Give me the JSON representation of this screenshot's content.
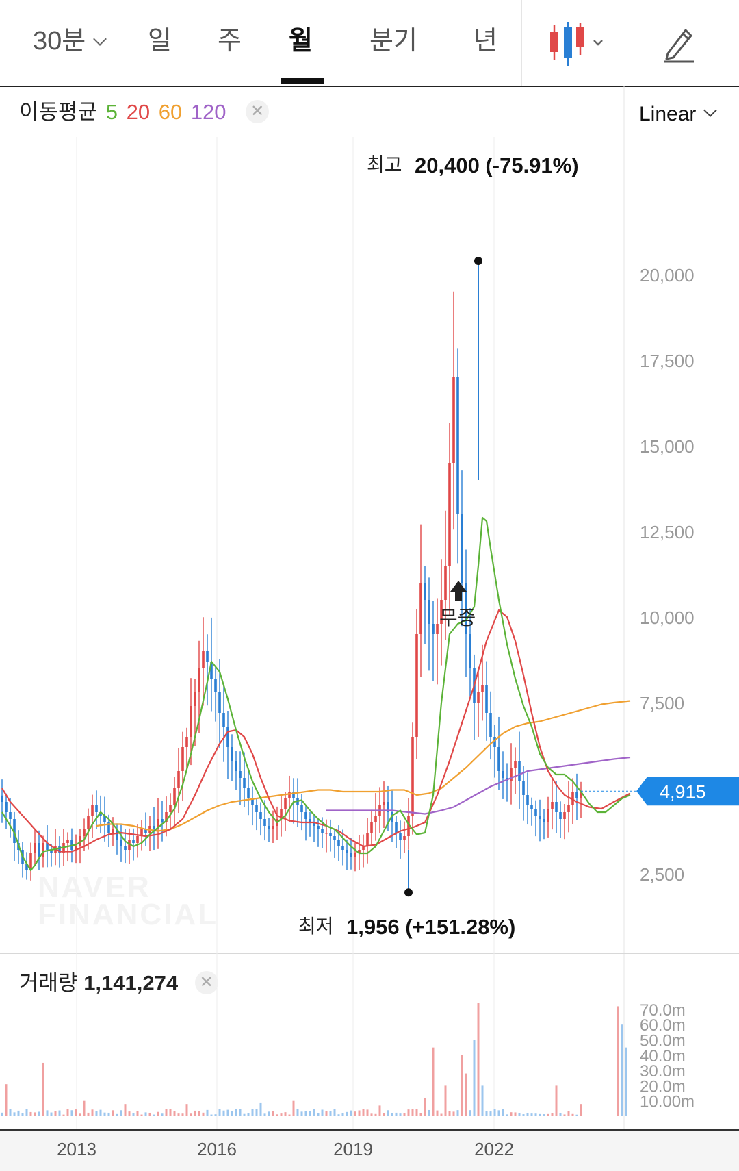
{
  "tabs": [
    {
      "label": "30분",
      "dropdown": true,
      "active": false
    },
    {
      "label": "일",
      "active": false
    },
    {
      "label": "주",
      "active": false
    },
    {
      "label": "월",
      "active": true
    },
    {
      "label": "분기",
      "active": false
    },
    {
      "label": "년",
      "active": false
    }
  ],
  "toolbar": {
    "chart_type_icon": "candlestick-icon",
    "draw_icon": "pencil-icon"
  },
  "ma_legend": {
    "label": "이동평균",
    "periods": [
      {
        "value": "5",
        "color": "#5cb338"
      },
      {
        "value": "20",
        "color": "#e04848"
      },
      {
        "value": "60",
        "color": "#f0a030"
      },
      {
        "value": "120",
        "color": "#a064c8"
      }
    ]
  },
  "scale_select": {
    "value": "Linear"
  },
  "annotations": {
    "high_prefix": "최고",
    "high_value": "20,400 (-75.91%)",
    "low_prefix": "최저",
    "low_value": "1,956 (+151.28%)",
    "event": "무증"
  },
  "price_tag": "4,915",
  "watermark": [
    "NAVER",
    "FINANCIAL"
  ],
  "volume_legend": {
    "label": "거래량",
    "value": "1,141,274"
  },
  "colors": {
    "up": "#e04848",
    "down": "#2a7fd4",
    "tag": "#1e88e5"
  },
  "chart_data": {
    "type": "candlestick",
    "price_axis": {
      "ticks": [
        "20,000",
        "17,500",
        "15,000",
        "12,500",
        "10,000",
        "7,500",
        "2,500"
      ],
      "range": [
        1200,
        21500
      ]
    },
    "volume_axis": {
      "ticks": [
        "70.0m",
        "60.0m",
        "50.0m",
        "40.0m",
        "30.0m",
        "20.0m",
        "10.00m"
      ],
      "range": [
        0,
        75
      ]
    },
    "x_axis": {
      "ticks": [
        "2013",
        "2016",
        "2019",
        "2022"
      ]
    },
    "high": {
      "value": 20400,
      "label": "최고 20,400 (-75.91%)"
    },
    "low": {
      "value": 1956,
      "label": "최저 1,956 (+151.28%)"
    },
    "last_price": 4915,
    "ma_periods": [
      5,
      20,
      60,
      120
    ],
    "start": {
      "year": 2011,
      "month": 9
    },
    "closes": [
      4600,
      4300,
      4100,
      3400,
      3200,
      2800,
      2600,
      3100,
      3400,
      3000,
      3400,
      3200,
      3100,
      3300,
      3100,
      3400,
      3500,
      3200,
      3300,
      3600,
      3800,
      4200,
      4500,
      4300,
      4200,
      4000,
      3700,
      3800,
      3500,
      3300,
      3200,
      3500,
      3400,
      3600,
      3800,
      3700,
      3900,
      3800,
      4100,
      4000,
      4300,
      4500,
      5000,
      5500,
      6200,
      6500,
      7400,
      7800,
      8500,
      9000,
      8700,
      8200,
      7800,
      7200,
      6800,
      6200,
      5800,
      5500,
      5300,
      5000,
      4700,
      4500,
      4300,
      4100,
      3900,
      3800,
      3900,
      4100,
      4400,
      4700,
      4900,
      4700,
      4500,
      4300,
      4100,
      4000,
      3900,
      3800,
      3700,
      3700,
      3600,
      3500,
      3300,
      3200,
      3100,
      3000,
      3100,
      3200,
      3300,
      3700,
      4000,
      4200,
      4500,
      4600,
      4300,
      4000,
      3700,
      3500,
      3600,
      4200,
      6500,
      9500,
      11000,
      10500,
      9800,
      9500,
      9800,
      10500,
      11500,
      14500,
      17000,
      13000,
      11000,
      9500,
      8500,
      7500,
      7800,
      8000,
      7200,
      6500,
      6200,
      5500,
      5300,
      5200,
      5600,
      5800,
      5200,
      4800,
      4500,
      4400,
      4200,
      4100,
      4000,
      4400,
      4600,
      4300,
      4100,
      4300,
      4500,
      4900,
      4700,
      4915
    ],
    "ma5": [
      [
        0,
        4300
      ],
      [
        3,
        3700
      ],
      [
        5,
        3000
      ],
      [
        7,
        2600
      ],
      [
        8,
        2750
      ],
      [
        10,
        3150
      ],
      [
        12,
        3200
      ],
      [
        14,
        3250
      ],
      [
        16,
        3300
      ],
      [
        18,
        3350
      ],
      [
        20,
        3500
      ],
      [
        22,
        3950
      ],
      [
        24,
        4300
      ],
      [
        26,
        4100
      ],
      [
        28,
        3800
      ],
      [
        30,
        3450
      ],
      [
        32,
        3300
      ],
      [
        34,
        3400
      ],
      [
        36,
        3650
      ],
      [
        38,
        3850
      ],
      [
        40,
        4050
      ],
      [
        42,
        4400
      ],
      [
        44,
        5100
      ],
      [
        46,
        6000
      ],
      [
        48,
        7000
      ],
      [
        50,
        8100
      ],
      [
        51,
        8700
      ],
      [
        53,
        8400
      ],
      [
        55,
        7600
      ],
      [
        57,
        6700
      ],
      [
        59,
        5900
      ],
      [
        61,
        5200
      ],
      [
        63,
        4700
      ],
      [
        65,
        4300
      ],
      [
        67,
        4000
      ],
      [
        69,
        4200
      ],
      [
        71,
        4600
      ],
      [
        73,
        4650
      ],
      [
        75,
        4350
      ],
      [
        77,
        4100
      ],
      [
        79,
        3900
      ],
      [
        81,
        3800
      ],
      [
        83,
        3550
      ],
      [
        85,
        3300
      ],
      [
        87,
        3100
      ],
      [
        89,
        3100
      ],
      [
        91,
        3300
      ],
      [
        93,
        3750
      ],
      [
        95,
        4200
      ],
      [
        97,
        4350
      ],
      [
        99,
        3950
      ],
      [
        101,
        3650
      ],
      [
        103,
        3700
      ],
      [
        105,
        4800
      ],
      [
        107,
        7500
      ],
      [
        109,
        9500
      ],
      [
        111,
        9800
      ],
      [
        113,
        9900
      ],
      [
        115,
        10300
      ],
      [
        116,
        11500
      ],
      [
        117,
        12900
      ],
      [
        118,
        12800
      ],
      [
        119,
        12000
      ],
      [
        121,
        10500
      ],
      [
        123,
        9200
      ],
      [
        125,
        8200
      ],
      [
        127,
        7400
      ],
      [
        129,
        6800
      ],
      [
        131,
        6000
      ],
      [
        133,
        5600
      ],
      [
        135,
        5400
      ],
      [
        137,
        5400
      ],
      [
        139,
        5200
      ],
      [
        141,
        4900
      ],
      [
        143,
        4550
      ],
      [
        145,
        4300
      ],
      [
        147,
        4300
      ],
      [
        149,
        4500
      ],
      [
        151,
        4700
      ],
      [
        153,
        4800
      ]
    ],
    "ma20": [
      [
        0,
        5000
      ],
      [
        2,
        4600
      ],
      [
        5,
        4200
      ],
      [
        8,
        3800
      ],
      [
        11,
        3400
      ],
      [
        14,
        3150
      ],
      [
        17,
        3150
      ],
      [
        20,
        3300
      ],
      [
        23,
        3500
      ],
      [
        26,
        3650
      ],
      [
        29,
        3700
      ],
      [
        32,
        3650
      ],
      [
        35,
        3600
      ],
      [
        38,
        3650
      ],
      [
        41,
        3800
      ],
      [
        44,
        4100
      ],
      [
        47,
        4800
      ],
      [
        50,
        5600
      ],
      [
        53,
        6300
      ],
      [
        55,
        6650
      ],
      [
        57,
        6700
      ],
      [
        59,
        6500
      ],
      [
        61,
        6000
      ],
      [
        63,
        5300
      ],
      [
        65,
        4700
      ],
      [
        67,
        4200
      ],
      [
        70,
        4050
      ],
      [
        73,
        4000
      ],
      [
        76,
        4000
      ],
      [
        79,
        3900
      ],
      [
        82,
        3750
      ],
      [
        85,
        3500
      ],
      [
        88,
        3300
      ],
      [
        91,
        3350
      ],
      [
        94,
        3550
      ],
      [
        97,
        3750
      ],
      [
        100,
        3850
      ],
      [
        103,
        4000
      ],
      [
        106,
        4800
      ],
      [
        109,
        5800
      ],
      [
        112,
        6900
      ],
      [
        115,
        8000
      ],
      [
        118,
        9300
      ],
      [
        121,
        10200
      ],
      [
        123,
        10000
      ],
      [
        125,
        9300
      ],
      [
        127,
        8300
      ],
      [
        129,
        7200
      ],
      [
        131,
        6200
      ],
      [
        133,
        5500
      ],
      [
        135,
        5100
      ],
      [
        137,
        4800
      ],
      [
        140,
        4600
      ],
      [
        143,
        4450
      ],
      [
        146,
        4400
      ],
      [
        149,
        4600
      ],
      [
        153,
        4850
      ]
    ],
    "ma60": [
      [
        23,
        3900
      ],
      [
        26,
        3950
      ],
      [
        29,
        3950
      ],
      [
        32,
        3900
      ],
      [
        35,
        3800
      ],
      [
        38,
        3750
      ],
      [
        41,
        3800
      ],
      [
        44,
        3950
      ],
      [
        47,
        4150
      ],
      [
        50,
        4350
      ],
      [
        53,
        4500
      ],
      [
        56,
        4600
      ],
      [
        59,
        4650
      ],
      [
        62,
        4700
      ],
      [
        65,
        4750
      ],
      [
        68,
        4800
      ],
      [
        71,
        4850
      ],
      [
        74,
        4900
      ],
      [
        77,
        4950
      ],
      [
        80,
        4950
      ],
      [
        83,
        4900
      ],
      [
        86,
        4900
      ],
      [
        89,
        4900
      ],
      [
        92,
        4900
      ],
      [
        95,
        4950
      ],
      [
        98,
        4950
      ],
      [
        101,
        4800
      ],
      [
        104,
        4850
      ],
      [
        107,
        5000
      ],
      [
        110,
        5300
      ],
      [
        113,
        5600
      ],
      [
        116,
        5950
      ],
      [
        119,
        6300
      ],
      [
        122,
        6600
      ],
      [
        125,
        6800
      ],
      [
        128,
        6900
      ],
      [
        131,
        6950
      ],
      [
        134,
        7050
      ],
      [
        137,
        7150
      ],
      [
        140,
        7250
      ],
      [
        143,
        7350
      ],
      [
        146,
        7450
      ],
      [
        149,
        7500
      ],
      [
        153,
        7550
      ]
    ],
    "ma120": [
      [
        79,
        4350
      ],
      [
        83,
        4350
      ],
      [
        87,
        4350
      ],
      [
        91,
        4350
      ],
      [
        95,
        4350
      ],
      [
        99,
        4300
      ],
      [
        103,
        4250
      ],
      [
        107,
        4350
      ],
      [
        110,
        4450
      ],
      [
        113,
        4650
      ],
      [
        116,
        4850
      ],
      [
        119,
        5050
      ],
      [
        122,
        5200
      ],
      [
        125,
        5350
      ],
      [
        128,
        5500
      ],
      [
        131,
        5550
      ],
      [
        134,
        5600
      ],
      [
        137,
        5650
      ],
      [
        140,
        5700
      ],
      [
        143,
        5750
      ],
      [
        146,
        5800
      ],
      [
        149,
        5850
      ],
      [
        153,
        5900
      ]
    ],
    "volume_levels": [
      {
        "index": 1,
        "value": 21,
        "color": "up"
      },
      {
        "index": 10,
        "value": 35,
        "color": "up"
      },
      {
        "index": 20,
        "value": 10,
        "color": "up"
      },
      {
        "index": 30,
        "value": 8,
        "color": "up"
      },
      {
        "index": 45,
        "value": 8,
        "color": "up"
      },
      {
        "index": 63,
        "value": 9,
        "color": "down"
      },
      {
        "index": 71,
        "value": 10,
        "color": "up"
      },
      {
        "index": 92,
        "value": 7,
        "color": "up"
      },
      {
        "index": 103,
        "value": 12,
        "color": "up"
      },
      {
        "index": 105,
        "value": 45,
        "color": "up"
      },
      {
        "index": 108,
        "value": 20,
        "color": "up"
      },
      {
        "index": 112,
        "value": 40,
        "color": "up"
      },
      {
        "index": 113,
        "value": 28,
        "color": "up"
      },
      {
        "index": 115,
        "value": 50,
        "color": "down"
      },
      {
        "index": 116,
        "value": 74,
        "color": "up"
      },
      {
        "index": 117,
        "value": 20,
        "color": "down"
      },
      {
        "index": 135,
        "value": 20,
        "color": "up"
      },
      {
        "index": 141,
        "value": 8,
        "color": "up"
      },
      {
        "index": 150,
        "value": 72,
        "color": "up"
      },
      {
        "index": 151,
        "value": 60,
        "color": "down"
      },
      {
        "index": 152,
        "value": 45,
        "color": "down"
      }
    ]
  }
}
